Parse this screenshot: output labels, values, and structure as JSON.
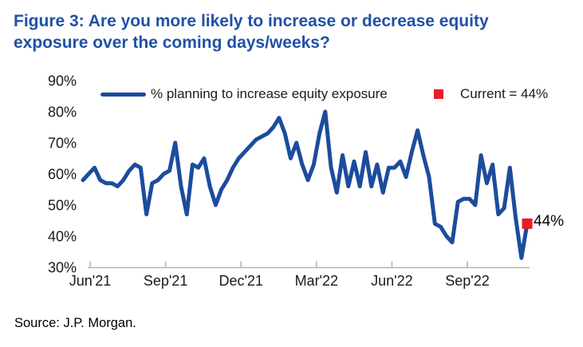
{
  "figure": {
    "title_line1": "Figure 3: Are you more likely to increase or decrease equity",
    "title_line2": "exposure over the coming days/weeks?",
    "source": "Source: J.P. Morgan."
  },
  "legend": {
    "series_label": "% planning to increase equity exposure",
    "current_label": "Current = 44%"
  },
  "annotation": {
    "current_value_label": "44%"
  },
  "colors": {
    "title_blue": "#2051a5",
    "line_blue": "#1c4c9c",
    "marker_red": "#ec1c24",
    "axis_gray": "#b5b5b5",
    "text_black": "#1a1a1a"
  },
  "chart_data": {
    "type": "line",
    "title": "Figure 3: Are you more likely to increase or decrease equity exposure over the coming days/weeks?",
    "grid": false,
    "legend_position": "top",
    "x_unit": "week",
    "x_tick_labels": [
      "Jun'21",
      "Sep'21",
      "Dec'21",
      "Mar'22",
      "Jun'22",
      "Sep'22"
    ],
    "y_ticks": [
      90,
      80,
      70,
      60,
      50,
      40,
      30
    ],
    "y_tick_labels": [
      "90%",
      "80%",
      "70%",
      "60%",
      "50%",
      "40%",
      "30%"
    ],
    "ylim": [
      30,
      90
    ],
    "current_value": 44,
    "series": [
      {
        "name": "% planning to increase equity exposure",
        "values": [
          58,
          60,
          62,
          58,
          57,
          57,
          56,
          58,
          61,
          63,
          62,
          47,
          57,
          58,
          60,
          61,
          70,
          56,
          47,
          63,
          62,
          65,
          56,
          50,
          55,
          58,
          62,
          65,
          67,
          69,
          71,
          72,
          73,
          75,
          78,
          73,
          65,
          70,
          63,
          58,
          63,
          73,
          80,
          62,
          54,
          66,
          56,
          64,
          56,
          67,
          56,
          63,
          54,
          62,
          62,
          64,
          59,
          67,
          74,
          66,
          59,
          44,
          43,
          40,
          38,
          51,
          52,
          52,
          50,
          66,
          57,
          63,
          47,
          49,
          62,
          46,
          33,
          44
        ]
      }
    ]
  }
}
